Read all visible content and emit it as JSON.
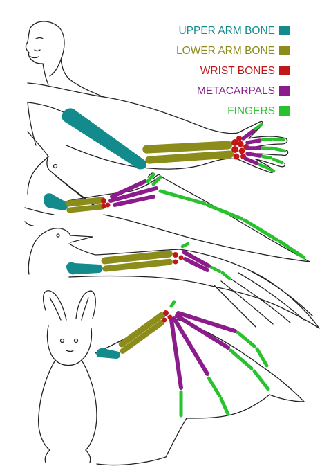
{
  "legend": {
    "items": [
      {
        "label": "UPPER ARM BONE",
        "color": "#138b8c"
      },
      {
        "label": "LOWER ARM BONE",
        "color": "#8c8c1a"
      },
      {
        "label": "WRIST BONES",
        "color": "#c01818"
      },
      {
        "label": "METACARPALS",
        "color": "#8c1c8c"
      },
      {
        "label": "FINGERS",
        "color": "#29c22f"
      }
    ]
  },
  "figures": [
    "human",
    "pterosaur",
    "bird",
    "bat"
  ]
}
